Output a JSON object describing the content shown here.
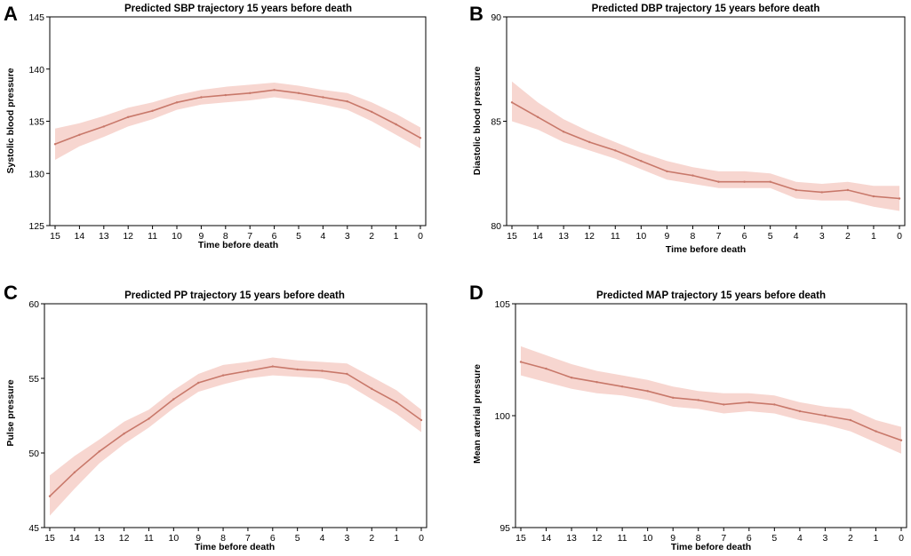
{
  "chart_data": [
    {
      "type": "line",
      "panel": "A",
      "title": "Predicted SBP trajectory 15 years before death",
      "xlabel": "Time before death",
      "ylabel": "Systolic blood pressure",
      "x": [
        15,
        14,
        13,
        12,
        11,
        10,
        9,
        8,
        7,
        6,
        5,
        4,
        3,
        2,
        1,
        0
      ],
      "y": [
        132.8,
        133.7,
        134.5,
        135.4,
        136.0,
        136.8,
        137.3,
        137.5,
        137.7,
        138.0,
        137.7,
        137.3,
        136.9,
        135.9,
        134.7,
        133.4
      ],
      "lower": [
        131.3,
        132.6,
        133.5,
        134.5,
        135.2,
        136.1,
        136.6,
        136.8,
        137.0,
        137.3,
        137.0,
        136.6,
        136.1,
        135.0,
        133.7,
        132.4
      ],
      "upper": [
        134.3,
        134.8,
        135.5,
        136.3,
        136.8,
        137.5,
        138.0,
        138.3,
        138.5,
        138.7,
        138.4,
        138.0,
        137.7,
        136.8,
        135.7,
        134.4
      ],
      "yticks": [
        125,
        130,
        135,
        140,
        145
      ],
      "ylim": [
        125,
        145
      ],
      "xticks": [
        15,
        14,
        13,
        12,
        11,
        10,
        9,
        8,
        7,
        6,
        5,
        4,
        3,
        2,
        1,
        0
      ],
      "grid": false,
      "line_color": "#c8786a",
      "band_color": "#f7d6d0"
    },
    {
      "type": "line",
      "panel": "B",
      "title": "Predicted DBP trajectory 15 years before death",
      "xlabel": "Time before death",
      "ylabel": "Diastolic blood pressure",
      "x": [
        15,
        14,
        13,
        12,
        11,
        10,
        9,
        8,
        7,
        6,
        5,
        4,
        3,
        2,
        1,
        0
      ],
      "y": [
        85.9,
        85.2,
        84.5,
        84.0,
        83.6,
        83.1,
        82.6,
        82.4,
        82.1,
        82.1,
        82.1,
        81.7,
        81.6,
        81.7,
        81.4,
        81.3
      ],
      "lower": [
        85.0,
        84.6,
        84.0,
        83.6,
        83.2,
        82.7,
        82.2,
        82.0,
        81.8,
        81.8,
        81.8,
        81.3,
        81.2,
        81.2,
        80.9,
        80.7
      ],
      "upper": [
        86.9,
        85.9,
        85.1,
        84.5,
        84.0,
        83.5,
        83.1,
        82.8,
        82.6,
        82.6,
        82.5,
        82.1,
        82.0,
        82.1,
        81.9,
        81.9
      ],
      "yticks": [
        80,
        85,
        90
      ],
      "ylim": [
        80,
        90
      ],
      "xticks": [
        15,
        14,
        13,
        12,
        11,
        10,
        9,
        8,
        7,
        6,
        5,
        4,
        3,
        2,
        1,
        0
      ],
      "grid": false,
      "line_color": "#c8786a",
      "band_color": "#f7d6d0"
    },
    {
      "type": "line",
      "panel": "C",
      "title": "Predicted PP trajectory 15 years before death",
      "xlabel": "Time before death",
      "ylabel": "Pulse pressure",
      "x": [
        15,
        14,
        13,
        12,
        11,
        10,
        9,
        8,
        7,
        6,
        5,
        4,
        3,
        2,
        1,
        0
      ],
      "y": [
        47.1,
        48.7,
        50.1,
        51.3,
        52.3,
        53.6,
        54.7,
        55.2,
        55.5,
        55.8,
        55.6,
        55.5,
        55.3,
        54.3,
        53.4,
        52.2
      ],
      "lower": [
        45.8,
        47.6,
        49.3,
        50.6,
        51.7,
        53.0,
        54.1,
        54.6,
        55.0,
        55.2,
        55.1,
        55.0,
        54.6,
        53.6,
        52.6,
        51.4
      ],
      "upper": [
        48.5,
        49.8,
        50.9,
        52.1,
        52.9,
        54.2,
        55.3,
        55.9,
        56.1,
        56.4,
        56.2,
        56.1,
        56.0,
        55.1,
        54.2,
        52.9
      ],
      "yticks": [
        45,
        50,
        55,
        60
      ],
      "ylim": [
        45,
        60
      ],
      "xticks": [
        15,
        14,
        13,
        12,
        11,
        10,
        9,
        8,
        7,
        6,
        5,
        4,
        3,
        2,
        1,
        0
      ],
      "grid": false,
      "line_color": "#c8786a",
      "band_color": "#f7d6d0"
    },
    {
      "type": "line",
      "panel": "D",
      "title": "Predicted MAP trajectory 15 years before death",
      "xlabel": "Time before death",
      "ylabel": "Mean arterial pressure",
      "x": [
        15,
        14,
        13,
        12,
        11,
        10,
        9,
        8,
        7,
        6,
        5,
        4,
        3,
        2,
        1,
        0
      ],
      "y": [
        102.4,
        102.1,
        101.7,
        101.5,
        101.3,
        101.1,
        100.8,
        100.7,
        100.5,
        100.6,
        100.5,
        100.2,
        100.0,
        99.8,
        99.3,
        98.9
      ],
      "lower": [
        101.8,
        101.5,
        101.2,
        101.0,
        100.9,
        100.7,
        100.4,
        100.3,
        100.1,
        100.2,
        100.1,
        99.8,
        99.6,
        99.3,
        98.8,
        98.3
      ],
      "upper": [
        103.1,
        102.7,
        102.3,
        102.0,
        101.8,
        101.6,
        101.3,
        101.1,
        101.0,
        101.0,
        100.9,
        100.6,
        100.4,
        100.3,
        99.8,
        99.5
      ],
      "yticks": [
        95,
        100,
        105
      ],
      "ylim": [
        95,
        105
      ],
      "xticks": [
        15,
        14,
        13,
        12,
        11,
        10,
        9,
        8,
        7,
        6,
        5,
        4,
        3,
        2,
        1,
        0
      ],
      "grid": false,
      "line_color": "#c8786a",
      "band_color": "#f7d6d0"
    }
  ]
}
